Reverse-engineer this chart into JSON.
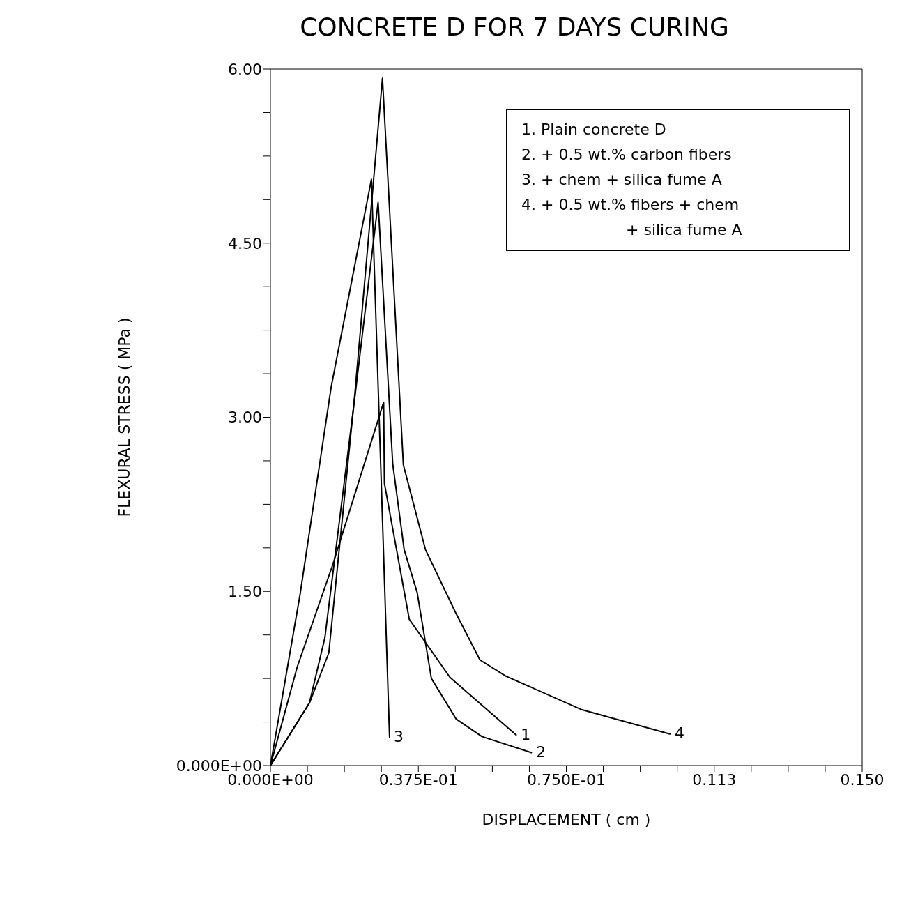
{
  "chart_data": {
    "type": "line",
    "title": "CONCRETE D FOR 7 DAYS CURING",
    "xlabel": "DISPLACEMENT ( cm )",
    "ylabel": "FLEXURAL STRESS ( MPa )",
    "xlim": [
      0,
      0.15
    ],
    "xticks": [
      {
        "value": 0,
        "label": "0.000E+00"
      },
      {
        "value": 0.009375,
        "label": null
      },
      {
        "value": 0.01875,
        "label": null
      },
      {
        "value": 0.028125,
        "label": null
      },
      {
        "value": 0.0375,
        "label": "0.375E-01"
      },
      {
        "value": 0.046875,
        "label": null
      },
      {
        "value": 0.05625,
        "label": null
      },
      {
        "value": 0.065625,
        "label": null
      },
      {
        "value": 0.075,
        "label": "0.750E-01"
      },
      {
        "value": 0.084375,
        "label": null
      },
      {
        "value": 0.09375,
        "label": null
      },
      {
        "value": 0.103125,
        "label": null
      },
      {
        "value": 0.1125,
        "label": "0.113"
      },
      {
        "value": 0.121875,
        "label": null
      },
      {
        "value": 0.13125,
        "label": null
      },
      {
        "value": 0.140625,
        "label": null
      },
      {
        "value": 0.15,
        "label": "0.150"
      }
    ],
    "ylim": [
      0,
      6
    ],
    "yticks": [
      {
        "value": 0,
        "label": "0.000E+00"
      },
      {
        "value": 0.375,
        "label": null
      },
      {
        "value": 0.75,
        "label": null
      },
      {
        "value": 1.125,
        "label": null
      },
      {
        "value": 1.5,
        "label": "1.50"
      },
      {
        "value": 1.875,
        "label": null
      },
      {
        "value": 2.25,
        "label": null
      },
      {
        "value": 2.625,
        "label": null
      },
      {
        "value": 3,
        "label": "3.00"
      },
      {
        "value": 3.375,
        "label": null
      },
      {
        "value": 3.75,
        "label": null
      },
      {
        "value": 4.125,
        "label": null
      },
      {
        "value": 4.5,
        "label": "4.50"
      },
      {
        "value": 4.875,
        "label": null
      },
      {
        "value": 5.25,
        "label": null
      },
      {
        "value": 5.625,
        "label": null
      },
      {
        "value": 6,
        "label": "6.00"
      }
    ],
    "marker": "none",
    "line_style": "solid",
    "series": [
      {
        "name": "1",
        "color": "#000000",
        "x": [
          0,
          0.0068,
          0.0158,
          0.0287,
          0.0289,
          0.0352,
          0.0455,
          0.0624
        ],
        "values": [
          0,
          0.85,
          1.73,
          3.13,
          2.43,
          1.26,
          0.76,
          0.26
        ]
      },
      {
        "name": "2",
        "color": "#000000",
        "x": [
          0,
          0.0099,
          0.0138,
          0.0215,
          0.0273,
          0.031,
          0.0339,
          0.0372,
          0.0408,
          0.0471,
          0.0536,
          0.0663
        ],
        "values": [
          0,
          0.54,
          1.1,
          3.2,
          4.85,
          2.6,
          1.86,
          1.49,
          0.75,
          0.4,
          0.25,
          0.11
        ]
      },
      {
        "name": "3",
        "color": "#000000",
        "x": [
          0,
          0.0075,
          0.0154,
          0.0256,
          0.0302
        ],
        "values": [
          0,
          1.47,
          3.26,
          5.05,
          0.24
        ]
      },
      {
        "name": "4",
        "color": "#000000",
        "x": [
          0,
          0.0099,
          0.0148,
          0.0214,
          0.0284,
          0.0337,
          0.0393,
          0.0469,
          0.0531,
          0.0597,
          0.079,
          0.1014
        ],
        "values": [
          0,
          0.54,
          0.97,
          3.2,
          5.92,
          2.59,
          1.86,
          1.32,
          0.91,
          0.77,
          0.48,
          0.27
        ]
      }
    ],
    "annotations": [
      "1. Plain concrete D",
      "2. + 0.5 wt.% carbon fibers",
      "3. + chem + silica fume A",
      "4. + 0.5 wt.% fibers + chem",
      "+ silica fume A"
    ]
  }
}
